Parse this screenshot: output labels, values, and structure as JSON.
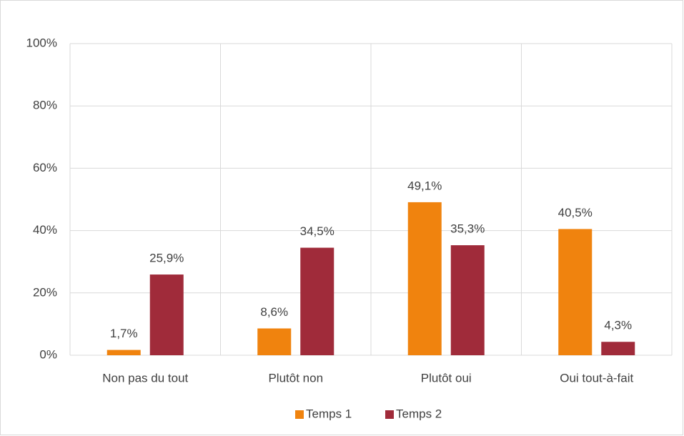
{
  "chart_data": {
    "type": "bar",
    "categories": [
      "Non pas du tout",
      "Plutôt non",
      "Plutôt oui",
      "Oui tout-à-fait"
    ],
    "series": [
      {
        "name": "Temps 1",
        "color": "#f0830e",
        "values": [
          1.7,
          8.6,
          49.1,
          40.5
        ],
        "value_labels": [
          "1,7%",
          "8,6%",
          "49,1%",
          "40,5%"
        ]
      },
      {
        "name": "Temps 2",
        "color": "#a02b3a",
        "values": [
          25.9,
          34.5,
          35.3,
          4.3
        ],
        "value_labels": [
          "25,9%",
          "34,5%",
          "35,3%",
          "4,3%"
        ]
      }
    ],
    "ylim": [
      0,
      100
    ],
    "yticks": [
      {
        "value": 0,
        "label": "0%"
      },
      {
        "value": 20,
        "label": "20%"
      },
      {
        "value": 40,
        "label": "40%"
      },
      {
        "value": 60,
        "label": "60%"
      },
      {
        "value": 80,
        "label": "80%"
      },
      {
        "value": 100,
        "label": "100%"
      }
    ],
    "grid": true,
    "legend": "bottom"
  }
}
